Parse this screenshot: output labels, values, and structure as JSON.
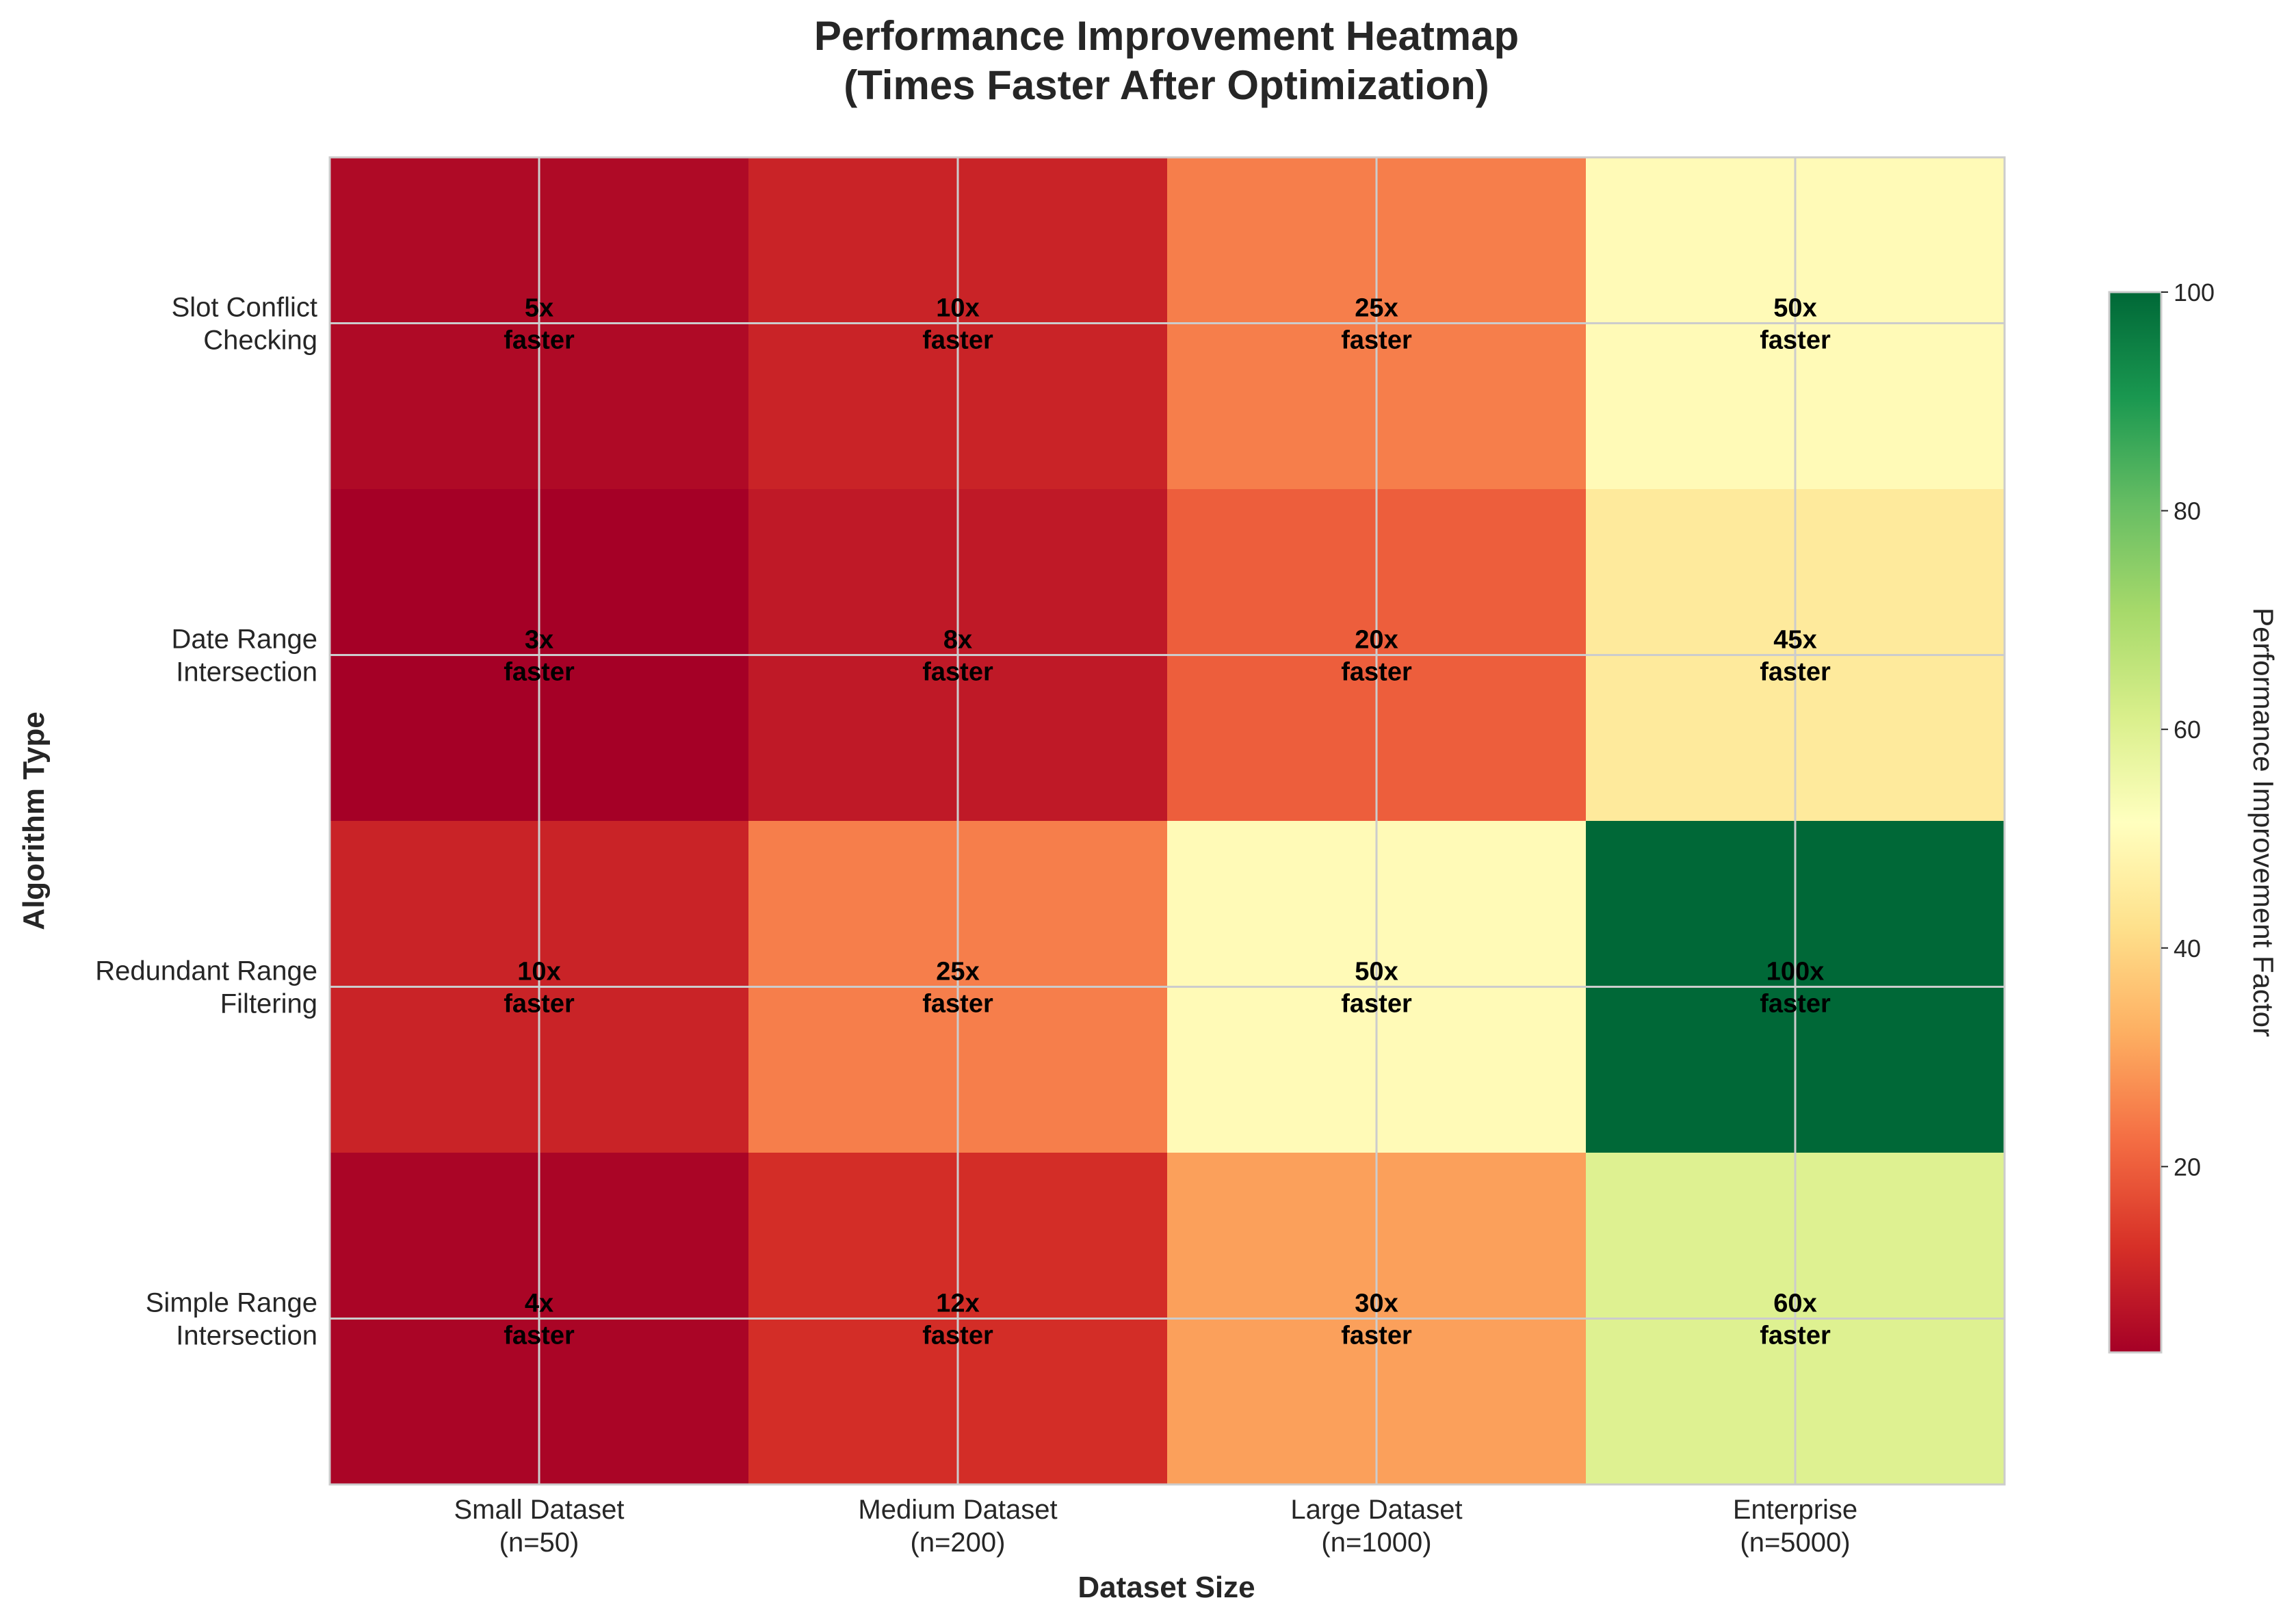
{
  "chart_data": {
    "type": "heatmap",
    "title_lines": [
      "Performance Improvement Heatmap",
      "(Times Faster After Optimization)"
    ],
    "xlabel": "Dataset Size",
    "ylabel": "Algorithm Type",
    "x_categories": [
      [
        "Small Dataset",
        "(n=50)"
      ],
      [
        "Medium Dataset",
        "(n=200)"
      ],
      [
        "Large Dataset",
        "(n=1000)"
      ],
      [
        "Enterprise",
        "(n=5000)"
      ]
    ],
    "y_categories": [
      [
        "Slot Conflict",
        "Checking"
      ],
      [
        "Date Range",
        "Intersection"
      ],
      [
        "Redundant Range",
        "Filtering"
      ],
      [
        "Simple Range",
        "Intersection"
      ]
    ],
    "values": [
      [
        5,
        10,
        25,
        50
      ],
      [
        3,
        8,
        20,
        45
      ],
      [
        10,
        25,
        50,
        100
      ],
      [
        4,
        12,
        30,
        60
      ]
    ],
    "cell_labels": [
      [
        [
          "5x",
          "faster"
        ],
        [
          "10x",
          "faster"
        ],
        [
          "25x",
          "faster"
        ],
        [
          "50x",
          "faster"
        ]
      ],
      [
        [
          "3x",
          "faster"
        ],
        [
          "8x",
          "faster"
        ],
        [
          "20x",
          "faster"
        ],
        [
          "45x",
          "faster"
        ]
      ],
      [
        [
          "10x",
          "faster"
        ],
        [
          "25x",
          "faster"
        ],
        [
          "50x",
          "faster"
        ],
        [
          "100x",
          "faster"
        ]
      ],
      [
        [
          "4x",
          "faster"
        ],
        [
          "12x",
          "faster"
        ],
        [
          "30x",
          "faster"
        ],
        [
          "60x",
          "faster"
        ]
      ]
    ],
    "colormap": "RdYlGn",
    "vmin": 3,
    "vmax": 100,
    "colorbar": {
      "label": "Performance Improvement Factor",
      "ticks": [
        20,
        40,
        60,
        80,
        100
      ]
    },
    "grid": true
  }
}
